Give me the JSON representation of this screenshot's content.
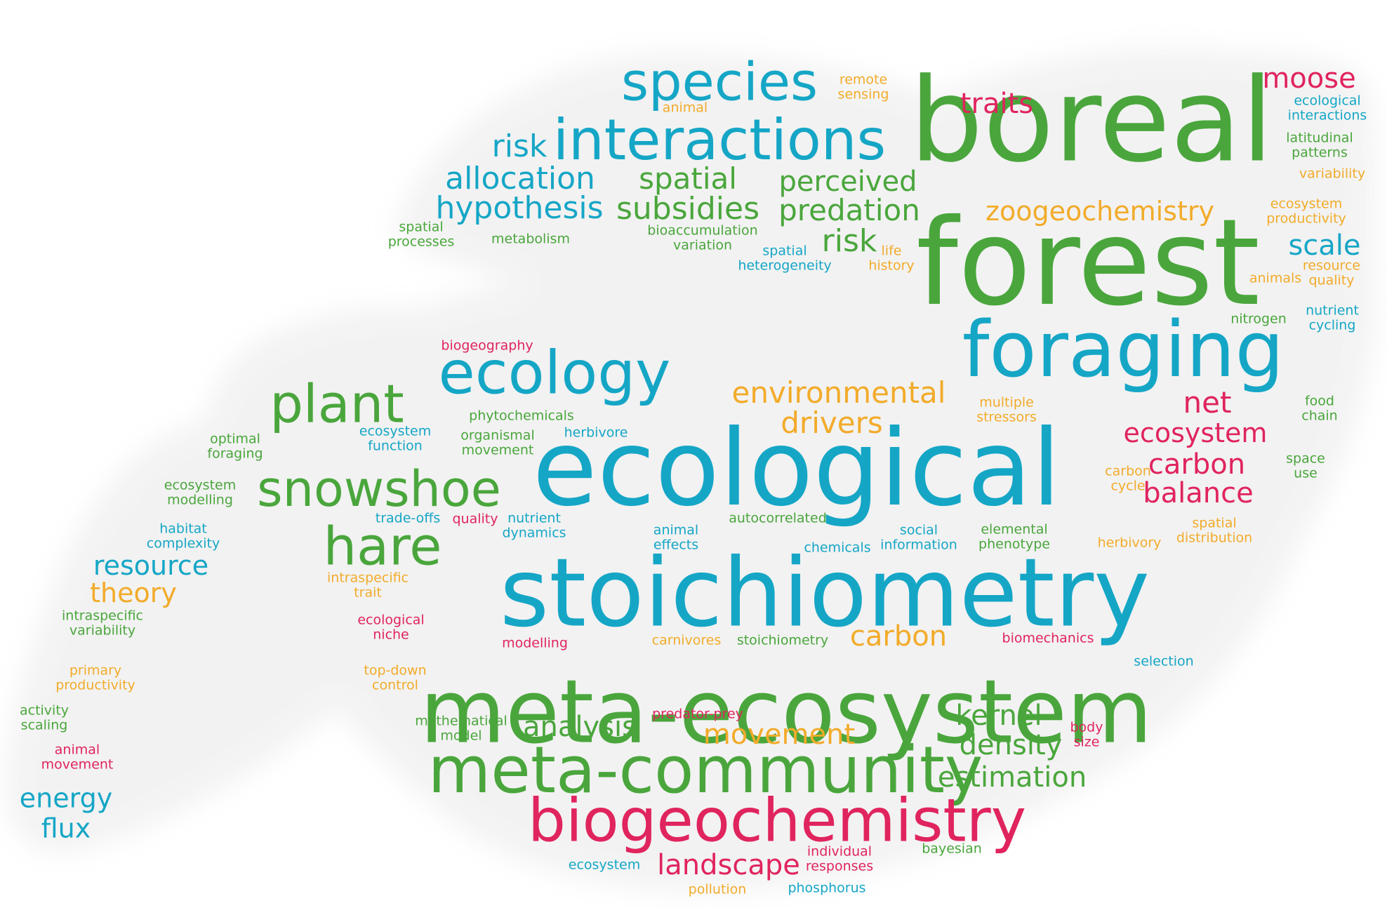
{
  "palette": {
    "green": "#4aa63c",
    "blue": "#15a6c6",
    "pink": "#e0245e",
    "orange": "#f2ab2a"
  },
  "words": [
    {
      "id": "boreal",
      "lines": [
        "boreal"
      ],
      "color": "green"
    },
    {
      "id": "forest",
      "lines": [
        "forest"
      ],
      "color": "green"
    },
    {
      "id": "ecological-large",
      "lines": [
        "ecological"
      ],
      "color": "blue"
    },
    {
      "id": "stoichiometry-large",
      "lines": [
        "stoichiometry"
      ],
      "color": "blue"
    },
    {
      "id": "meta-ecosystem",
      "lines": [
        "meta-ecosystem"
      ],
      "color": "green"
    },
    {
      "id": "foraging-large",
      "lines": [
        "foraging"
      ],
      "color": "blue"
    },
    {
      "id": "meta-community",
      "lines": [
        "meta-community"
      ],
      "color": "green"
    },
    {
      "id": "biogeochemistry",
      "lines": [
        "biogeochemistry"
      ],
      "color": "pink"
    },
    {
      "id": "species",
      "lines": [
        "species"
      ],
      "color": "blue"
    },
    {
      "id": "interactions",
      "lines": [
        "interactions"
      ],
      "color": "blue"
    },
    {
      "id": "ecology",
      "lines": [
        "ecology"
      ],
      "color": "blue"
    },
    {
      "id": "plant",
      "lines": [
        "plant"
      ],
      "color": "green"
    },
    {
      "id": "snowshoe",
      "lines": [
        "snowshoe"
      ],
      "color": "green"
    },
    {
      "id": "hare",
      "lines": [
        "hare"
      ],
      "color": "green"
    },
    {
      "id": "risk-top",
      "lines": [
        "risk"
      ],
      "color": "blue"
    },
    {
      "id": "allocation",
      "lines": [
        "allocation"
      ],
      "color": "blue"
    },
    {
      "id": "hypothesis",
      "lines": [
        "hypothesis"
      ],
      "color": "blue"
    },
    {
      "id": "spatial-subsidies-1",
      "lines": [
        "spatial"
      ],
      "color": "green"
    },
    {
      "id": "subsidies",
      "lines": [
        "subsidies"
      ],
      "color": "green"
    },
    {
      "id": "perceived",
      "lines": [
        "perceived"
      ],
      "color": "green"
    },
    {
      "id": "predation",
      "lines": [
        "predation"
      ],
      "color": "green"
    },
    {
      "id": "risk-mid",
      "lines": [
        "risk"
      ],
      "color": "green"
    },
    {
      "id": "traits",
      "lines": [
        "traits"
      ],
      "color": "pink"
    },
    {
      "id": "moose",
      "lines": [
        "moose"
      ],
      "color": "pink"
    },
    {
      "id": "zoogeochemistry",
      "lines": [
        "zoogeochemistry"
      ],
      "color": "orange"
    },
    {
      "id": "scale",
      "lines": [
        "scale"
      ],
      "color": "blue"
    },
    {
      "id": "environmental",
      "lines": [
        "environmental"
      ],
      "color": "orange"
    },
    {
      "id": "drivers",
      "lines": [
        "drivers"
      ],
      "color": "orange"
    },
    {
      "id": "net",
      "lines": [
        "net"
      ],
      "color": "pink"
    },
    {
      "id": "ecosystem-mid",
      "lines": [
        "ecosystem"
      ],
      "color": "pink"
    },
    {
      "id": "carbon-right",
      "lines": [
        "carbon"
      ],
      "color": "pink"
    },
    {
      "id": "balance",
      "lines": [
        "balance"
      ],
      "color": "pink"
    },
    {
      "id": "resource",
      "lines": [
        "resource"
      ],
      "color": "blue"
    },
    {
      "id": "theory",
      "lines": [
        "theory"
      ],
      "color": "orange"
    },
    {
      "id": "carbon-low",
      "lines": [
        "carbon"
      ],
      "color": "orange"
    },
    {
      "id": "kernel",
      "lines": [
        "kernel"
      ],
      "color": "green"
    },
    {
      "id": "analysis",
      "lines": [
        "analysis"
      ],
      "color": "green"
    },
    {
      "id": "movement",
      "lines": [
        "movement"
      ],
      "color": "orange"
    },
    {
      "id": "density",
      "lines": [
        "density"
      ],
      "color": "green"
    },
    {
      "id": "estimation",
      "lines": [
        "estimation"
      ],
      "color": "green"
    },
    {
      "id": "landscape",
      "lines": [
        "landscape"
      ],
      "color": "pink"
    },
    {
      "id": "energy-flux",
      "lines": [
        "energy",
        "flux"
      ],
      "color": "blue"
    },
    {
      "id": "remote-sensing",
      "lines": [
        "remote",
        "sensing"
      ],
      "color": "orange"
    },
    {
      "id": "animal-top",
      "lines": [
        "animal"
      ],
      "color": "orange"
    },
    {
      "id": "ecological-interactions",
      "lines": [
        "ecological",
        "interactions"
      ],
      "color": "blue"
    },
    {
      "id": "latitudinal-patterns",
      "lines": [
        "latitudinal",
        "patterns"
      ],
      "color": "green"
    },
    {
      "id": "variability",
      "lines": [
        "variability"
      ],
      "color": "orange"
    },
    {
      "id": "ecosystem-productivity",
      "lines": [
        "ecosystem",
        "productivity"
      ],
      "color": "orange"
    },
    {
      "id": "resource-quality",
      "lines": [
        "resource",
        "quality"
      ],
      "color": "orange"
    },
    {
      "id": "animals",
      "lines": [
        "animals"
      ],
      "color": "orange"
    },
    {
      "id": "nitrogen",
      "lines": [
        "nitrogen"
      ],
      "color": "green"
    },
    {
      "id": "nutrient-cycling",
      "lines": [
        "nutrient",
        "cycling"
      ],
      "color": "blue"
    },
    {
      "id": "spatial-processes",
      "lines": [
        "spatial",
        "processes"
      ],
      "color": "green"
    },
    {
      "id": "metabolism",
      "lines": [
        "metabolism"
      ],
      "color": "green"
    },
    {
      "id": "bioaccumulation-variation",
      "lines": [
        "bioaccumulation",
        "variation"
      ],
      "color": "green"
    },
    {
      "id": "spatial-heterogeneity",
      "lines": [
        "spatial",
        "heterogeneity"
      ],
      "color": "blue"
    },
    {
      "id": "life-history",
      "lines": [
        "life",
        "history"
      ],
      "color": "orange"
    },
    {
      "id": "biogeography",
      "lines": [
        "biogeography"
      ],
      "color": "pink"
    },
    {
      "id": "phytochemicals",
      "lines": [
        "phytochemicals"
      ],
      "color": "green"
    },
    {
      "id": "optimal-foraging",
      "lines": [
        "optimal",
        "foraging"
      ],
      "color": "green"
    },
    {
      "id": "ecosystem-function",
      "lines": [
        "ecosystem",
        "function"
      ],
      "color": "blue"
    },
    {
      "id": "organismal-movement",
      "lines": [
        "organismal",
        "movement"
      ],
      "color": "green"
    },
    {
      "id": "herbivore",
      "lines": [
        "herbivore"
      ],
      "color": "blue"
    },
    {
      "id": "multiple-stressors",
      "lines": [
        "multiple",
        "stressors"
      ],
      "color": "orange"
    },
    {
      "id": "food-chain",
      "lines": [
        "food",
        "chain"
      ],
      "color": "green"
    },
    {
      "id": "space-use",
      "lines": [
        "space",
        "use"
      ],
      "color": "green"
    },
    {
      "id": "carbon-cycle",
      "lines": [
        "carbon",
        "cycle"
      ],
      "color": "orange"
    },
    {
      "id": "ecosystem-modelling",
      "lines": [
        "ecosystem",
        "modelling"
      ],
      "color": "green"
    },
    {
      "id": "habitat-complexity",
      "lines": [
        "habitat",
        "complexity"
      ],
      "color": "blue"
    },
    {
      "id": "trade-offs",
      "lines": [
        "trade-offs"
      ],
      "color": "blue"
    },
    {
      "id": "quality",
      "lines": [
        "quality"
      ],
      "color": "pink"
    },
    {
      "id": "nutrient-dynamics",
      "lines": [
        "nutrient",
        "dynamics"
      ],
      "color": "blue"
    },
    {
      "id": "autocorrelated",
      "lines": [
        "autocorrelated"
      ],
      "color": "green"
    },
    {
      "id": "animal-effects",
      "lines": [
        "animal",
        "effects"
      ],
      "color": "blue"
    },
    {
      "id": "chemicals",
      "lines": [
        "chemicals"
      ],
      "color": "blue"
    },
    {
      "id": "social-information",
      "lines": [
        "social",
        "information"
      ],
      "color": "blue"
    },
    {
      "id": "elemental-phenotype",
      "lines": [
        "elemental",
        "phenotype"
      ],
      "color": "green"
    },
    {
      "id": "herbivory",
      "lines": [
        "herbivory"
      ],
      "color": "orange"
    },
    {
      "id": "spatial-distribution",
      "lines": [
        "spatial",
        "distribution"
      ],
      "color": "orange"
    },
    {
      "id": "intraspecific-trait",
      "lines": [
        "intraspecific",
        "trait"
      ],
      "color": "orange"
    },
    {
      "id": "intraspecific-variability",
      "lines": [
        "intraspecific",
        "variability"
      ],
      "color": "green"
    },
    {
      "id": "ecological-niche",
      "lines": [
        "ecological",
        "niche"
      ],
      "color": "pink"
    },
    {
      "id": "modelling",
      "lines": [
        "modelling"
      ],
      "color": "pink"
    },
    {
      "id": "carnivores",
      "lines": [
        "carnivores"
      ],
      "color": "orange"
    },
    {
      "id": "stoichiometry-small",
      "lines": [
        "stoichiometry"
      ],
      "color": "green"
    },
    {
      "id": "biomechanics",
      "lines": [
        "biomechanics"
      ],
      "color": "pink"
    },
    {
      "id": "selection",
      "lines": [
        "selection"
      ],
      "color": "blue"
    },
    {
      "id": "primary-productivity",
      "lines": [
        "primary",
        "productivity"
      ],
      "color": "orange"
    },
    {
      "id": "top-down-control",
      "lines": [
        "top-down",
        "control"
      ],
      "color": "orange"
    },
    {
      "id": "activity-scaling",
      "lines": [
        "activity",
        "scaling"
      ],
      "color": "green"
    },
    {
      "id": "mathematical-model",
      "lines": [
        "mathematical",
        "model"
      ],
      "color": "green"
    },
    {
      "id": "predator-prey",
      "lines": [
        "predator-prey"
      ],
      "color": "pink"
    },
    {
      "id": "body-size",
      "lines": [
        "body",
        "size"
      ],
      "color": "pink"
    },
    {
      "id": "animal-movement",
      "lines": [
        "animal",
        "movement"
      ],
      "color": "pink"
    },
    {
      "id": "individual-responses",
      "lines": [
        "individual",
        "responses"
      ],
      "color": "pink"
    },
    {
      "id": "bayesian",
      "lines": [
        "bayesian"
      ],
      "color": "green"
    },
    {
      "id": "ecosystem-bottom",
      "lines": [
        "ecosystem"
      ],
      "color": "blue"
    },
    {
      "id": "pollution",
      "lines": [
        "pollution"
      ],
      "color": "orange"
    },
    {
      "id": "phosphorus",
      "lines": [
        "phosphorus"
      ],
      "color": "blue"
    }
  ]
}
